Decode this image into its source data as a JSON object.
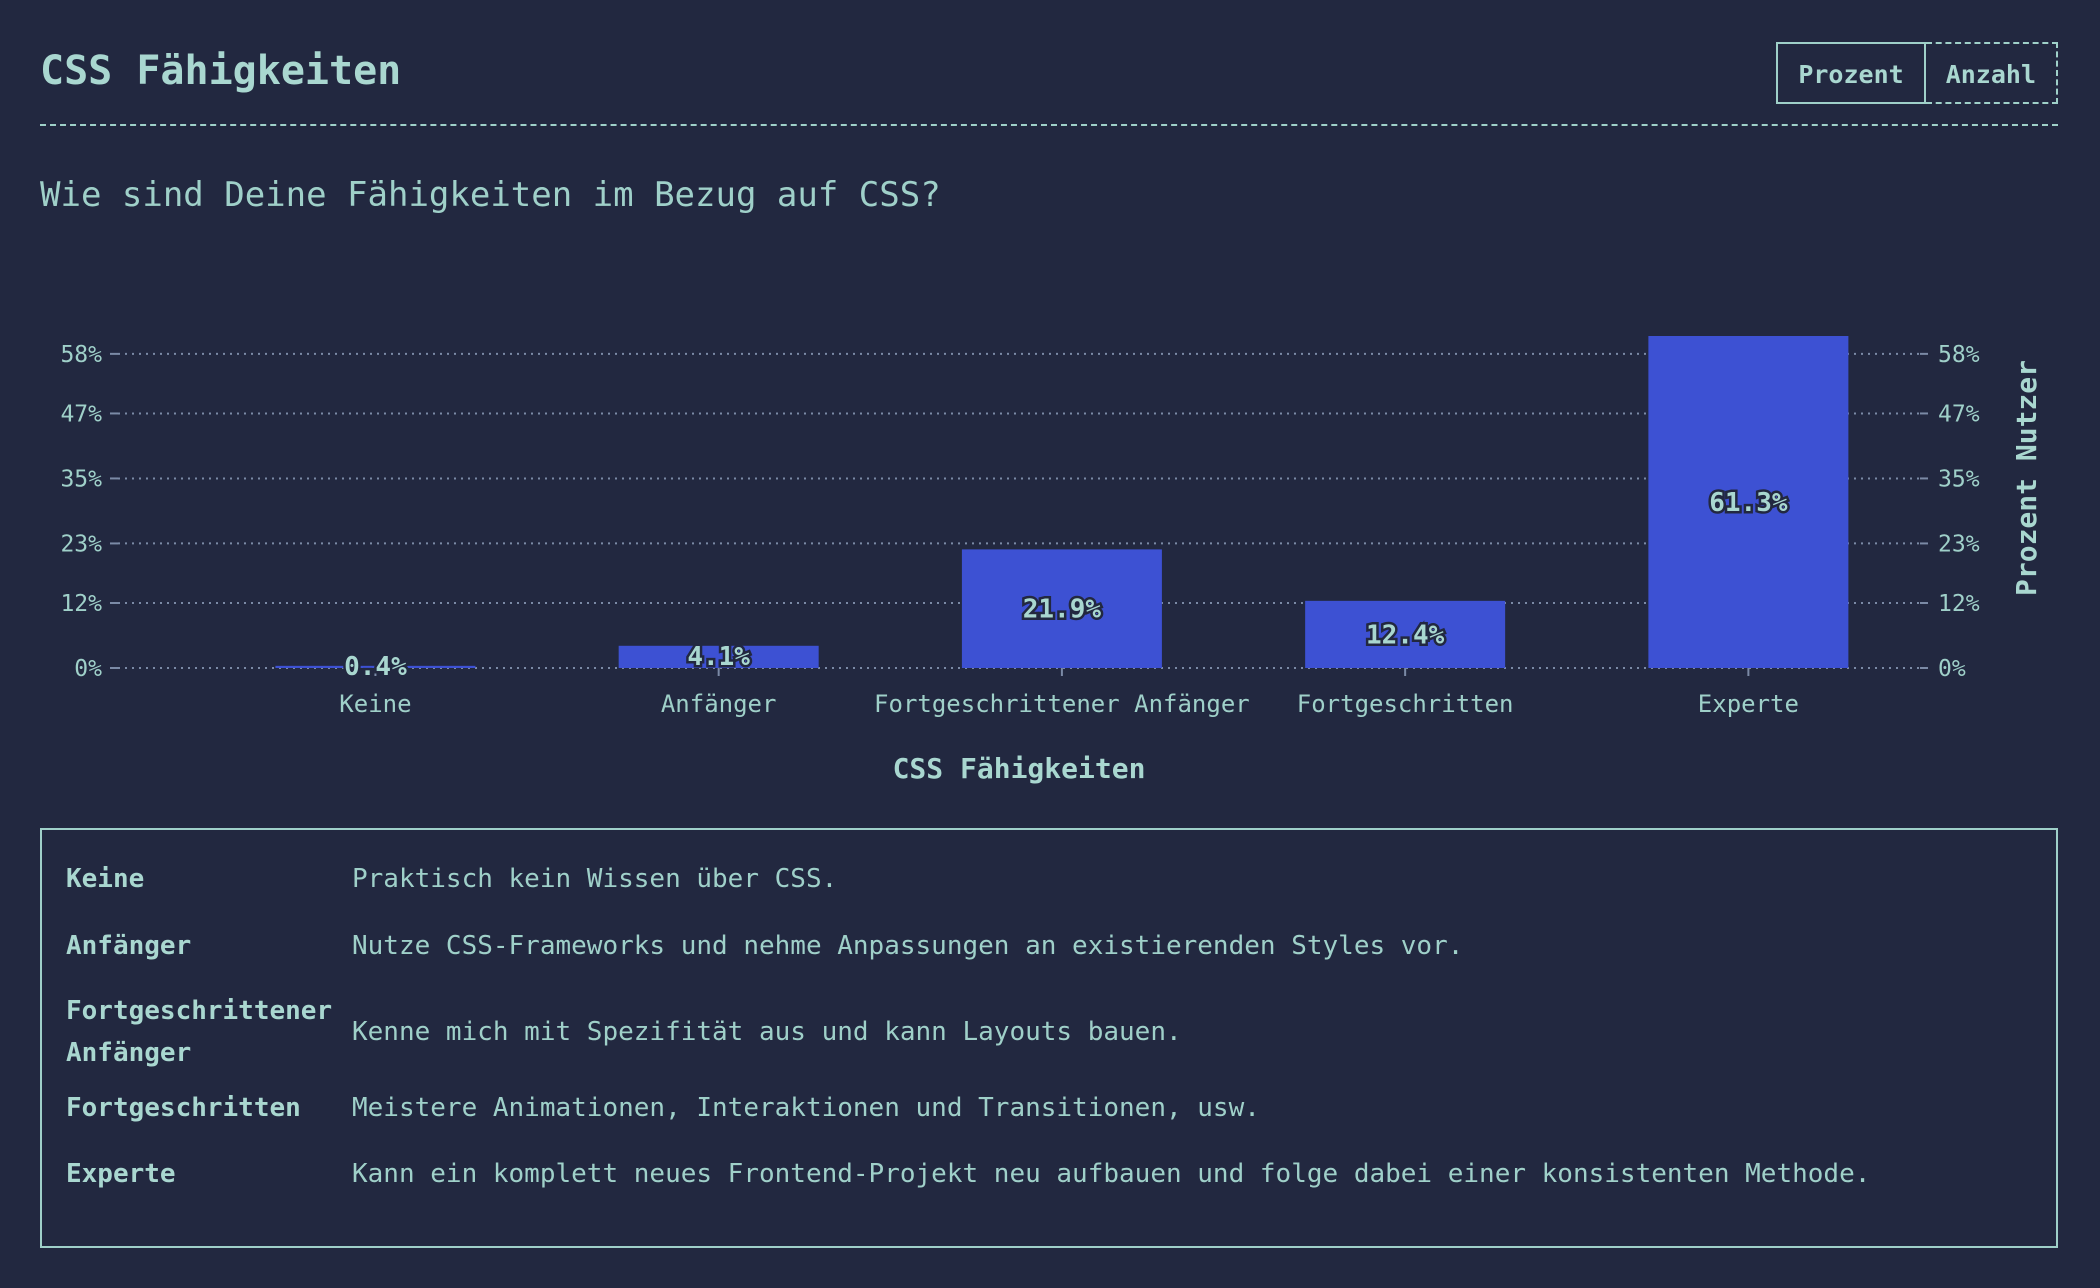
{
  "header": {
    "title": "CSS Fähigkeiten",
    "toggle": [
      "Prozent",
      "Anzahl"
    ]
  },
  "question": "Wie sind Deine Fähigkeiten im Bezug auf CSS?",
  "chart_data": {
    "type": "bar",
    "categories": [
      "Keine",
      "Anfänger",
      "Fortgeschrittener Anfänger",
      "Fortgeschritten",
      "Experte"
    ],
    "values": [
      0.4,
      4.1,
      21.9,
      12.4,
      61.3
    ],
    "value_labels": [
      "0.4%",
      "4.1%",
      "21.9%",
      "12.4%",
      "61.3%"
    ],
    "yticks": [
      0,
      12,
      23,
      35,
      47,
      58
    ],
    "ytick_labels": [
      "0%",
      "12%",
      "23%",
      "35%",
      "47%",
      "58%"
    ],
    "ylim": [
      0,
      61.3
    ],
    "xlabel": "CSS Fähigkeiten",
    "ylabel": "Prozent Nutzer",
    "grid": true,
    "bar_color": "#3d51d3"
  },
  "legend": [
    {
      "term": "Keine",
      "desc": "Praktisch kein Wissen über CSS."
    },
    {
      "term": "Anfänger",
      "desc": "Nutze CSS-Frameworks und nehme Anpassungen an existierenden Styles vor."
    },
    {
      "term": "Fortgeschrittener Anfänger",
      "desc": "Kenne mich mit Spezifität aus und kann Layouts bauen."
    },
    {
      "term": "Fortgeschritten",
      "desc": "Meistere Animationen, Interaktionen und Transitionen, usw."
    },
    {
      "term": "Experte",
      "desc": "Kann ein komplett neues Frontend-Projekt neu aufbauen und folge dabei einer konsistenten Methode."
    }
  ]
}
